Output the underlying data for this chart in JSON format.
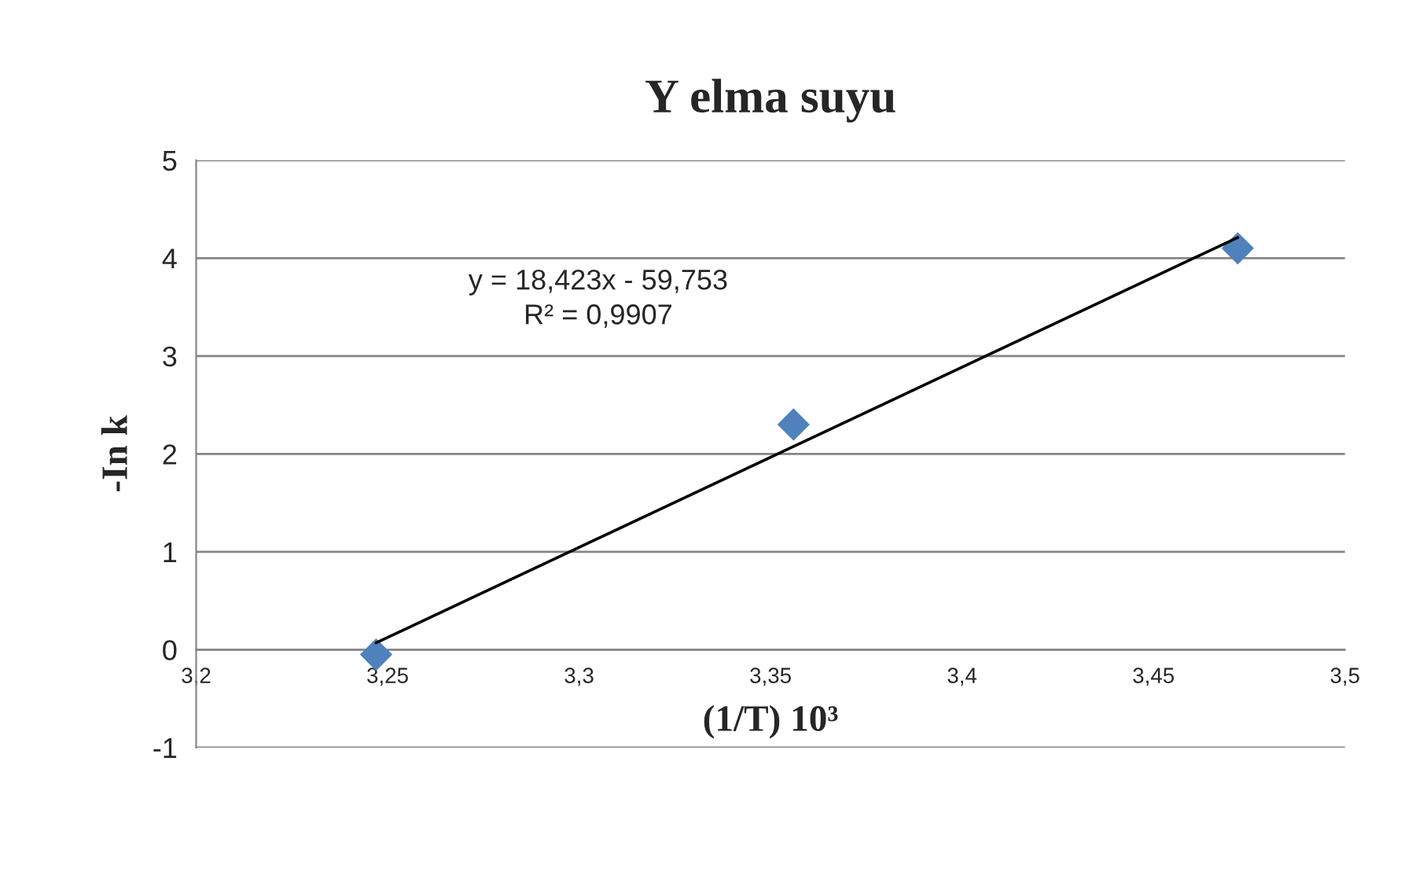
{
  "chart_data": {
    "type": "scatter",
    "title": "Y elma suyu",
    "xlabel": "(1/T) 10³",
    "ylabel": "-In k",
    "x": [
      3.247,
      3.356,
      3.472
    ],
    "series": [
      {
        "color": "#4f81bd",
        "marker": "diamond",
        "values": [
          -0.05,
          2.3,
          4.1
        ]
      },
      {
        "type": "line",
        "color": "#000000",
        "marker": "none",
        "line_style": "solid",
        "x": [
          3.247,
          3.472
        ],
        "values": [
          0.07,
          4.21
        ]
      }
    ],
    "annotations": [
      "y = 18,423x - 59,753",
      "R² = 0,9907"
    ],
    "xlim": [
      3.2,
      3.5
    ],
    "xticks": [
      {
        "value": 3.2,
        "label": "3,2"
      },
      {
        "value": 3.25,
        "label": "3,25"
      },
      {
        "value": 3.3,
        "label": "3,3"
      },
      {
        "value": 3.35,
        "label": "3,35"
      },
      {
        "value": 3.4,
        "label": "3,4"
      },
      {
        "value": 3.45,
        "label": "3,45"
      },
      {
        "value": 3.5,
        "label": "3,5"
      }
    ],
    "ylim": [
      -1,
      5
    ],
    "yticks": [
      -1,
      0,
      1,
      2,
      3,
      4,
      5
    ],
    "grid": "y",
    "legend": false
  }
}
